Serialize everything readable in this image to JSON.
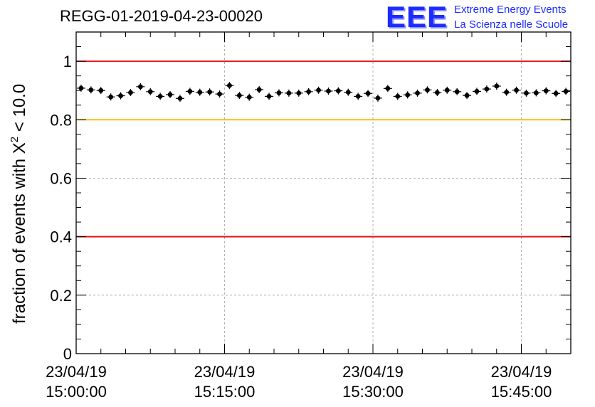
{
  "chart_data": {
    "type": "scatter",
    "title": "REGG-01-2019-04-23-00020",
    "ylabel_text": "fraction of events with X",
    "ylabel_sup": "2",
    "ylabel_tail": " < 10.0",
    "xlabel": "",
    "ylim": [
      0,
      1.1
    ],
    "xlim_minutes": [
      0,
      50
    ],
    "x_ticks": [
      {
        "date": "23/04/19",
        "time": "15:00:00",
        "minute": 0
      },
      {
        "date": "23/04/19",
        "time": "15:15:00",
        "minute": 15
      },
      {
        "date": "23/04/19",
        "time": "15:30:00",
        "minute": 30
      },
      {
        "date": "23/04/19",
        "time": "15:45:00",
        "minute": 45
      }
    ],
    "y_ticks": [
      "0",
      "0.2",
      "0.4",
      "0.6",
      "0.8",
      "1"
    ],
    "y_tick_values": [
      0,
      0.2,
      0.4,
      0.6,
      0.8,
      1.0
    ],
    "grid": true,
    "reference_lines": [
      {
        "y": 1.0,
        "color": "#e8161b"
      },
      {
        "y": 0.8,
        "color": "#f5c016"
      },
      {
        "y": 0.4,
        "color": "#e8161b"
      }
    ],
    "series": [
      {
        "color": "#000000",
        "x": [
          "15:00:30",
          "15:01:30",
          "15:02:30",
          "15:03:30",
          "15:04:30",
          "15:05:30",
          "15:06:30",
          "15:07:30",
          "15:08:30",
          "15:09:30",
          "15:10:30",
          "15:11:30",
          "15:12:30",
          "15:13:30",
          "15:14:30",
          "15:15:30",
          "15:16:30",
          "15:17:30",
          "15:18:30",
          "15:19:30",
          "15:20:30",
          "15:21:30",
          "15:22:30",
          "15:23:30",
          "15:24:30",
          "15:25:30",
          "15:26:30",
          "15:27:30",
          "15:28:30",
          "15:29:30",
          "15:30:30",
          "15:31:30",
          "15:32:30",
          "15:33:30",
          "15:34:30",
          "15:35:30",
          "15:36:30",
          "15:37:30",
          "15:38:30",
          "15:39:30",
          "15:40:30",
          "15:41:30",
          "15:42:30",
          "15:43:30",
          "15:44:30",
          "15:45:30",
          "15:46:30",
          "15:47:30",
          "15:48:30",
          "15:49:30"
        ],
        "y": [
          0.908,
          0.902,
          0.9,
          0.878,
          0.882,
          0.893,
          0.913,
          0.896,
          0.88,
          0.886,
          0.873,
          0.897,
          0.894,
          0.895,
          0.888,
          0.917,
          0.883,
          0.877,
          0.903,
          0.88,
          0.892,
          0.891,
          0.891,
          0.896,
          0.901,
          0.898,
          0.899,
          0.894,
          0.88,
          0.89,
          0.874,
          0.907,
          0.88,
          0.885,
          0.891,
          0.902,
          0.893,
          0.901,
          0.896,
          0.883,
          0.897,
          0.905,
          0.915,
          0.894,
          0.901,
          0.891,
          0.892,
          0.899,
          0.89,
          0.897
        ]
      }
    ]
  },
  "logo": {
    "mark": "EEE",
    "line1": "Extreme Energy Events",
    "line2": "La Scienza nelle Scuole"
  },
  "colors": {
    "logo": "#1e2bff",
    "red": "#e8161b",
    "yellow": "#f5c016",
    "grid": "#b0b0b0"
  }
}
